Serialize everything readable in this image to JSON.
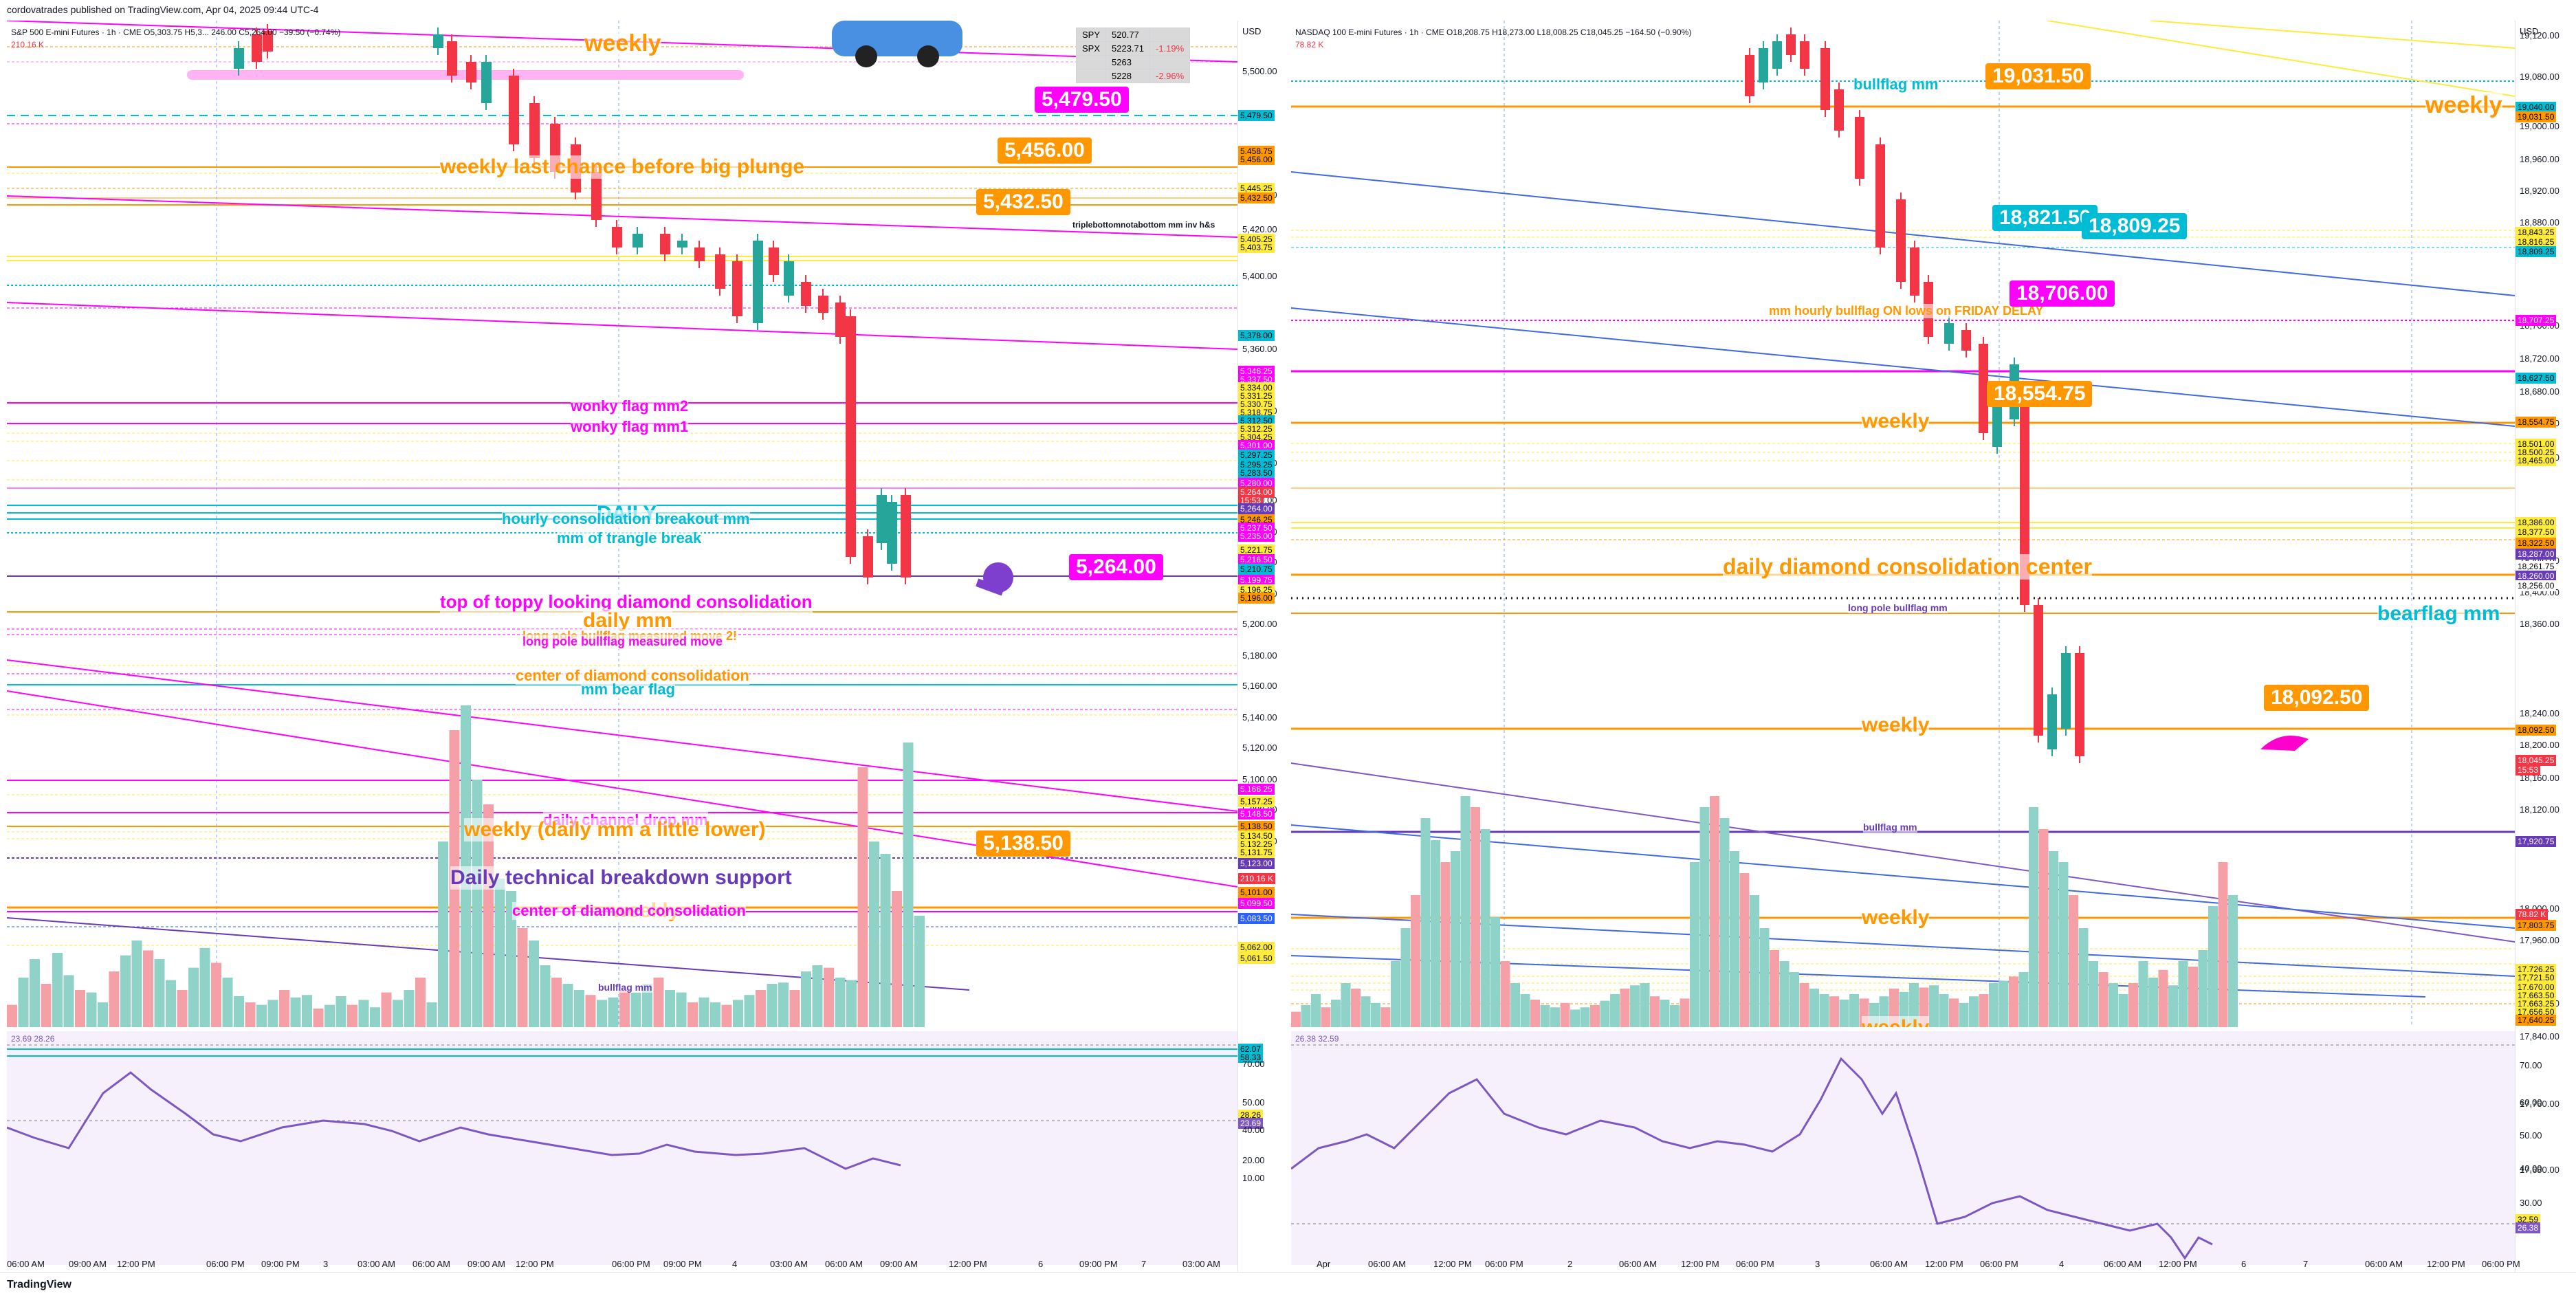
{
  "header": {
    "publisher": "cordovatrades published on TradingView.com, Apr 04, 2025 09:44 UTC-4"
  },
  "footer": {
    "brand": "TradingView"
  },
  "left": {
    "symbol": "S&P 500 E-mini Futures · 1h · CME",
    "ohlc": "O5,303.75 H5,3... 246.00 C5,264.00 −39.50 (−0.74%)",
    "currency": "USD",
    "volume_value": "210.16 K",
    "rsi_values": "23.69  28.26",
    "price_axis_ticks": [
      "5,500.00",
      "5,440.00",
      "5,420.00",
      "5,400.00",
      "5,360.00",
      "5,340.00",
      "5,300.00",
      "5,280.00",
      "5,260.00",
      "5,240.00",
      "5,220.00",
      "5,200.00",
      "5,180.00",
      "5,160.00",
      "5,140.00",
      "5,120.00",
      "5,100.00",
      "5,080.00",
      "5,060.00"
    ],
    "rsi_axis_ticks": [
      "70.00",
      "50.00",
      "40.00",
      "20.00",
      "10.00"
    ],
    "price_tags": [
      {
        "text": "5,479.50",
        "bg": "#00bcd4",
        "fg": "#000"
      },
      {
        "text": "5,458.75",
        "bg": "#ff9800",
        "fg": "#000"
      },
      {
        "text": "5,456.00",
        "bg": "#ff9800",
        "fg": "#000"
      },
      {
        "text": "5,445.25",
        "bg": "#ffeb3b",
        "fg": "#000"
      },
      {
        "text": "5,432.50",
        "bg": "#ff9800",
        "fg": "#000"
      },
      {
        "text": "5,405.25",
        "bg": "#ffeb3b",
        "fg": "#000"
      },
      {
        "text": "5,403.75",
        "bg": "#ffeb3b",
        "fg": "#000"
      },
      {
        "text": "5,378.00",
        "bg": "#00bcd4",
        "fg": "#000"
      },
      {
        "text": "5,346.25",
        "bg": "#ff00ff",
        "fg": "#fff"
      },
      {
        "text": "5,337.50",
        "bg": "#ff00ff",
        "fg": "#fff"
      },
      {
        "text": "5,334.00",
        "bg": "#ffeb3b",
        "fg": "#000"
      },
      {
        "text": "5,331.25",
        "bg": "#ffeb3b",
        "fg": "#000"
      },
      {
        "text": "5,330.75",
        "bg": "#ffeb3b",
        "fg": "#000"
      },
      {
        "text": "5,318.75",
        "bg": "#ffeb3b",
        "fg": "#000"
      },
      {
        "text": "5,312.50",
        "bg": "#00bcd4",
        "fg": "#000"
      },
      {
        "text": "5,312.25",
        "bg": "#ffeb3b",
        "fg": "#000"
      },
      {
        "text": "5,304.25",
        "bg": "#ffeb3b",
        "fg": "#000"
      },
      {
        "text": "5,301.00",
        "bg": "#ff00ff",
        "fg": "#fff"
      },
      {
        "text": "5,297.25",
        "bg": "#00bcd4",
        "fg": "#000"
      },
      {
        "text": "5,295.25",
        "bg": "#00bcd4",
        "fg": "#000"
      },
      {
        "text": "5,283.50",
        "bg": "#00bcd4",
        "fg": "#000"
      },
      {
        "text": "5,280.00",
        "bg": "#ff00ff",
        "fg": "#fff"
      },
      {
        "text": "5,264.00",
        "bg": "#f23645",
        "fg": "#fff"
      },
      {
        "text": "15:53",
        "bg": "#f23645",
        "fg": "#fff"
      },
      {
        "text": "5,264.00",
        "bg": "#673ab7",
        "fg": "#fff"
      },
      {
        "text": "5,246.25",
        "bg": "#ff9800",
        "fg": "#000"
      },
      {
        "text": "5,237.50",
        "bg": "#ff00ff",
        "fg": "#fff"
      },
      {
        "text": "5,235.00",
        "bg": "#ff00ff",
        "fg": "#fff"
      },
      {
        "text": "5,221.75",
        "bg": "#ffeb3b",
        "fg": "#000"
      },
      {
        "text": "5,216.50",
        "bg": "#ff00ff",
        "fg": "#fff"
      },
      {
        "text": "5,210.75",
        "bg": "#00bcd4",
        "fg": "#000"
      },
      {
        "text": "5,199.75",
        "bg": "#ff00ff",
        "fg": "#fff"
      },
      {
        "text": "5,196.25",
        "bg": "#ffeb3b",
        "fg": "#000"
      },
      {
        "text": "5,196.00",
        "bg": "#ff9800",
        "fg": "#000"
      },
      {
        "text": "5,166.25",
        "bg": "#ff00ff",
        "fg": "#fff"
      },
      {
        "text": "5,157.25",
        "bg": "#ffeb3b",
        "fg": "#000"
      },
      {
        "text": "5,148.50",
        "bg": "#ff00ff",
        "fg": "#fff"
      },
      {
        "text": "5,138.50",
        "bg": "#ff9800",
        "fg": "#000"
      },
      {
        "text": "5,134.50",
        "bg": "#ffeb3b",
        "fg": "#000"
      },
      {
        "text": "5,132.25",
        "bg": "#ffeb3b",
        "fg": "#000"
      },
      {
        "text": "5,131.75",
        "bg": "#ffeb3b",
        "fg": "#000"
      },
      {
        "text": "5,123.00",
        "bg": "#673ab7",
        "fg": "#fff"
      },
      {
        "text": "210.16 K",
        "bg": "#f23645",
        "fg": "#fff"
      },
      {
        "text": "5,101.00",
        "bg": "#ff9800",
        "fg": "#000"
      },
      {
        "text": "5,099.50",
        "bg": "#ff00ff",
        "fg": "#fff"
      },
      {
        "text": "5,083.50",
        "bg": "#2962ff",
        "fg": "#fff"
      },
      {
        "text": "5,062.00",
        "bg": "#ffeb3b",
        "fg": "#000"
      },
      {
        "text": "5,061.50",
        "bg": "#ffeb3b",
        "fg": "#000"
      },
      {
        "text": "62.07",
        "bg": "#00bcd4",
        "fg": "#000"
      },
      {
        "text": "58.33",
        "bg": "#00bcd4",
        "fg": "#000"
      },
      {
        "text": "28.26",
        "bg": "#ffeb3b",
        "fg": "#000"
      },
      {
        "text": "23.69",
        "bg": "#7e57c2",
        "fg": "#fff"
      }
    ],
    "time_labels": [
      "06:00 AM",
      "09:00 AM",
      "12:00 PM",
      "06:00 PM",
      "09:00 PM",
      "3",
      "03:00 AM",
      "06:00 AM",
      "09:00 AM",
      "12:00 PM",
      "06:00 PM",
      "09:00 PM",
      "4",
      "03:00 AM",
      "06:00 AM",
      "09:00 AM",
      "12:00 PM",
      "6",
      "09:00 PM",
      "7",
      "03:00 AM"
    ],
    "callouts": [
      {
        "text": "5,479.50",
        "bg": "#ff00ff",
        "fg": "#fff"
      },
      {
        "text": "5,456.00",
        "bg": "#ff9800",
        "fg": "#fff"
      },
      {
        "text": "5,432.50",
        "bg": "#ff9800",
        "fg": "#fff"
      },
      {
        "text": "5,264.00",
        "bg": "#ff00ff",
        "fg": "#fff"
      },
      {
        "text": "5,138.50",
        "bg": "#ff9800",
        "fg": "#fff"
      }
    ],
    "labels": [
      {
        "text": "weekly",
        "color": "#ff9800"
      },
      {
        "text": "weekly last chance before big plunge",
        "color": "#ff9800"
      },
      {
        "text": "triplebottomnotabottom mm inv h&s",
        "color": "#131722"
      },
      {
        "text": "wonky flag mm2",
        "color": "#ff00ff"
      },
      {
        "text": "wonky flag mm1",
        "color": "#ff00ff"
      },
      {
        "text": "DAILY",
        "color": "#00bcd4"
      },
      {
        "text": "hourly consolidation breakout mm",
        "color": "#00bcd4"
      },
      {
        "text": "mm of trangle break",
        "color": "#00bcd4"
      },
      {
        "text": "top of toppy looking diamond consolidation",
        "color": "#ff00ff"
      },
      {
        "text": "daily mm",
        "color": "#ff9800"
      },
      {
        "text": "long pole bullflag measured move 2!",
        "color": "#ff9800"
      },
      {
        "text": "long pole bullflag measured move",
        "color": "#ff00ff"
      },
      {
        "text": "center of diamond consolidation",
        "color": "#ff9800"
      },
      {
        "text": "mm bear flag",
        "color": "#00bcd4"
      },
      {
        "text": "daily channel drop mm",
        "color": "#ff00ff"
      },
      {
        "text": "weekly (daily mm a little lower)",
        "color": "#ff9800"
      },
      {
        "text": "Daily technical breakdown support",
        "color": "#673ab7"
      },
      {
        "text": "weekly",
        "color": "#ff9800"
      },
      {
        "text": "center of diamond consolidation",
        "color": "#ff00ff"
      },
      {
        "text": "bullflag mm",
        "color": "#673ab7"
      }
    ],
    "compare_table": [
      {
        "sym": "SPY",
        "val": "520.77",
        "chg": ""
      },
      {
        "sym": "SPX",
        "val": "5223.71",
        "chg": "-1.19%"
      },
      {
        "sym": "",
        "val": "5263",
        "chg": ""
      },
      {
        "sym": "",
        "val": "5228",
        "chg": "-2.96%"
      }
    ]
  },
  "right": {
    "symbol": "NASDAQ 100 E-mini Futures · 1h · CME",
    "ohlc": "O18,208.75 H18,273.00 L18,008.25 C18,045.25 −164.50 (−0.90%)",
    "currency": "USD",
    "volume_value": "78.82 K",
    "rsi_values": "26.38  32.59",
    "price_axis_ticks": [
      "19,120.00",
      "19,080.00",
      "19,000.00",
      "18,960.00",
      "18,920.00",
      "18,880.00",
      "18,760.00",
      "18,720.00",
      "18,680.00",
      "18,640.00",
      "18,600.00",
      "18,440.00",
      "18,400.00",
      "18,360.00",
      "18,240.00",
      "18,200.00",
      "18,160.00",
      "18,120.00",
      "18,000.00",
      "17,960.00",
      "17,880.00",
      "17,840.00",
      "17,760.00",
      "17,680.00"
    ],
    "rsi_axis_ticks": [
      "70.00",
      "60.00",
      "50.00",
      "40.00",
      "30.00"
    ],
    "price_tags": [
      {
        "text": "19,040.00",
        "bg": "#00bcd4",
        "fg": "#000"
      },
      {
        "text": "19,031.50",
        "bg": "#ff9800",
        "fg": "#000"
      },
      {
        "text": "18,843.25",
        "bg": "#ffeb3b",
        "fg": "#000"
      },
      {
        "text": "18,816.25",
        "bg": "#ffeb3b",
        "fg": "#000"
      },
      {
        "text": "18,809.25",
        "bg": "#00bcd4",
        "fg": "#000"
      },
      {
        "text": "18,707.25",
        "bg": "#ff00ff",
        "fg": "#fff"
      },
      {
        "text": "18,627.50",
        "bg": "#00bcd4",
        "fg": "#000"
      },
      {
        "text": "18,554.75",
        "bg": "#ff9800",
        "fg": "#000"
      },
      {
        "text": "18,501.00",
        "bg": "#ffeb3b",
        "fg": "#000"
      },
      {
        "text": "18,500.25",
        "bg": "#ffeb3b",
        "fg": "#000"
      },
      {
        "text": "18,465.00",
        "bg": "#ffeb3b",
        "fg": "#000"
      },
      {
        "text": "18,386.00",
        "bg": "#ffeb3b",
        "fg": "#000"
      },
      {
        "text": "18,377.50",
        "bg": "#ffeb3b",
        "fg": "#000"
      },
      {
        "text": "18,322.50",
        "bg": "#ff9800",
        "fg": "#000"
      },
      {
        "text": "18,287.00",
        "bg": "#673ab7",
        "fg": "#fff"
      },
      {
        "text": "18,261.75",
        "bg": "#ffffff",
        "fg": "#000"
      },
      {
        "text": "18,260.00",
        "bg": "#673ab7",
        "fg": "#fff"
      },
      {
        "text": "18,256.00",
        "bg": "#ffffff",
        "fg": "#000"
      },
      {
        "text": "18,092.50",
        "bg": "#ff9800",
        "fg": "#000"
      },
      {
        "text": "18,045.25",
        "bg": "#f23645",
        "fg": "#fff"
      },
      {
        "text": "15:53",
        "bg": "#f23645",
        "fg": "#fff"
      },
      {
        "text": "17,920.75",
        "bg": "#673ab7",
        "fg": "#fff"
      },
      {
        "text": "78.82 K",
        "bg": "#f23645",
        "fg": "#fff"
      },
      {
        "text": "17,803.75",
        "bg": "#ff9800",
        "fg": "#000"
      },
      {
        "text": "17,726.25",
        "bg": "#ffeb3b",
        "fg": "#000"
      },
      {
        "text": "17,721.50",
        "bg": "#ffeb3b",
        "fg": "#000"
      },
      {
        "text": "17,670.00",
        "bg": "#ffeb3b",
        "fg": "#000"
      },
      {
        "text": "17,663.50",
        "bg": "#ffeb3b",
        "fg": "#000"
      },
      {
        "text": "17,663.25",
        "bg": "#ffeb3b",
        "fg": "#000"
      },
      {
        "text": "17,656.50",
        "bg": "#ffeb3b",
        "fg": "#000"
      },
      {
        "text": "17,640.25",
        "bg": "#ff9800",
        "fg": "#000"
      },
      {
        "text": "32.59",
        "bg": "#ffeb3b",
        "fg": "#000"
      },
      {
        "text": "26.38",
        "bg": "#7e57c2",
        "fg": "#fff"
      }
    ],
    "time_labels": [
      "Apr",
      "06:00 AM",
      "12:00 PM",
      "06:00 PM",
      "2",
      "06:00 AM",
      "12:00 PM",
      "06:00 PM",
      "3",
      "06:00 AM",
      "12:00 PM",
      "06:00 PM",
      "4",
      "06:00 AM",
      "12:00 PM",
      "6",
      "7",
      "06:00 AM",
      "12:00 PM",
      "06:00 PM"
    ],
    "callouts": [
      {
        "text": "19,031.50",
        "bg": "#ff9800",
        "fg": "#fff"
      },
      {
        "text": "18,821.50",
        "bg": "#00bcd4",
        "fg": "#fff"
      },
      {
        "text": "18,809.25",
        "bg": "#00bcd4",
        "fg": "#fff"
      },
      {
        "text": "18,706.00",
        "bg": "#ff00ff",
        "fg": "#fff"
      },
      {
        "text": "18,554.75",
        "bg": "#ff9800",
        "fg": "#fff"
      },
      {
        "text": "18,092.50",
        "bg": "#ff9800",
        "fg": "#fff"
      }
    ],
    "labels": [
      {
        "text": "bullflag mm",
        "color": "#00bcd4"
      },
      {
        "text": "weekly",
        "color": "#ff9800"
      },
      {
        "text": "mm hourly bullflag ON lows on FRIDAY DELAY",
        "color": "#ff9800"
      },
      {
        "text": "weekly",
        "color": "#ff9800"
      },
      {
        "text": "daily diamond consolidation center",
        "color": "#ff9800"
      },
      {
        "text": "long pole bullflag mm",
        "color": "#673ab7"
      },
      {
        "text": "bearflag mm",
        "color": "#00bcd4"
      },
      {
        "text": "weekly",
        "color": "#ff9800"
      },
      {
        "text": "bullflag mm",
        "color": "#673ab7"
      },
      {
        "text": "weekly",
        "color": "#ff9800"
      },
      {
        "text": "weekly",
        "color": "#ff9800"
      }
    ]
  }
}
